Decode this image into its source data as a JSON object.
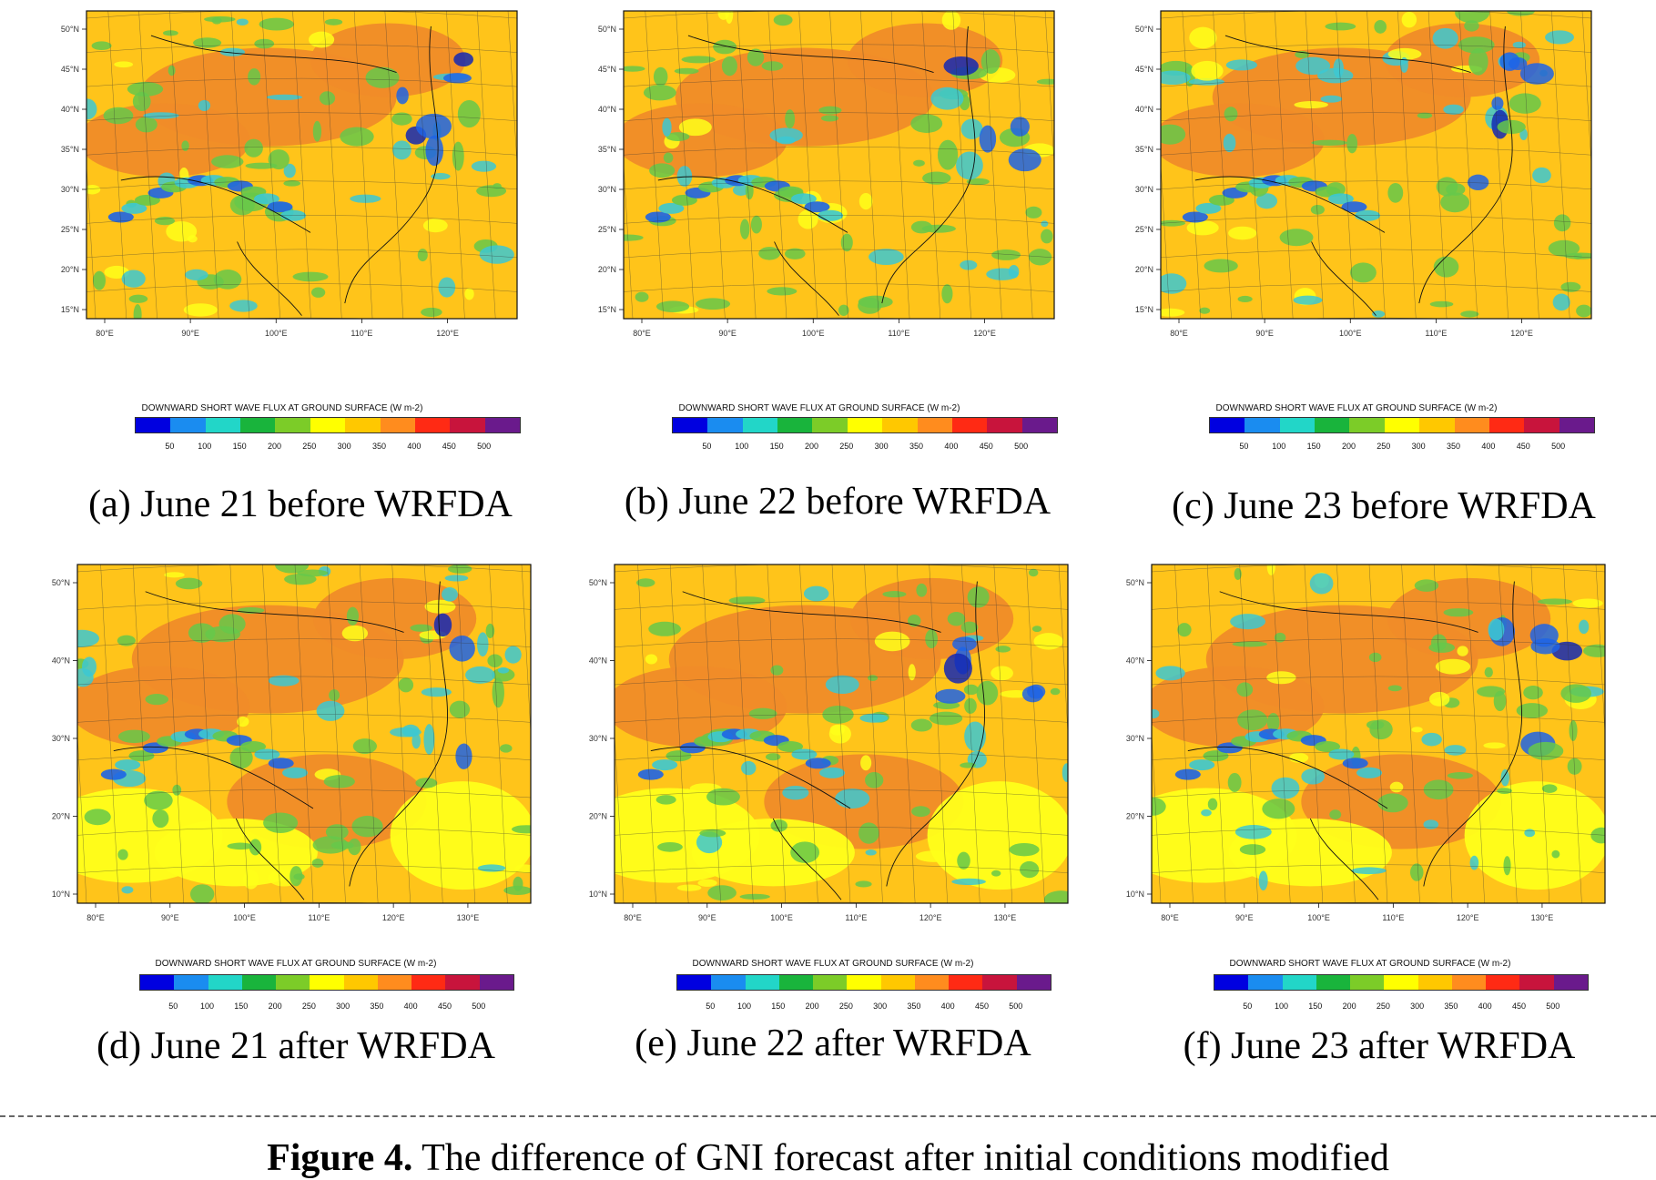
{
  "colorbar": {
    "title": "DOWNWARD SHORT WAVE FLUX AT GROUND SURFACE  (W m-2)",
    "colors": [
      "#0000e0",
      "#1a8cf0",
      "#22d6c8",
      "#19b43c",
      "#7ccc28",
      "#ffff00",
      "#ffc800",
      "#ff8c1e",
      "#ff2a14",
      "#c8143c",
      "#6a1a8c"
    ],
    "ticks": [
      "50",
      "100",
      "150",
      "200",
      "250",
      "300",
      "350",
      "400",
      "450",
      "500"
    ]
  },
  "palette": {
    "orange": "#f08c28",
    "amber": "#ffc41a",
    "yellow": "#ffff1a",
    "green": "#66c84a",
    "cyan": "#3cc8d2",
    "blue": "#1e64e6",
    "navy": "#1428b4"
  },
  "panels": [
    {
      "caption": "(a) June 21 before WRFDA",
      "lon_labels": [
        "80°E",
        "90°E",
        "100°E",
        "110°E",
        "120°E"
      ],
      "lat_labels": [
        "50°N",
        "45°N",
        "40°N",
        "35°N",
        "30°N",
        "25°N",
        "20°N",
        "15°N"
      ]
    },
    {
      "caption": "(b) June 22 before WRFDA",
      "lon_labels": [
        "80°E",
        "90°E",
        "100°E",
        "110°E",
        "120°E"
      ],
      "lat_labels": [
        "50°N",
        "45°N",
        "40°N",
        "35°N",
        "30°N",
        "25°N",
        "20°N",
        "15°N"
      ]
    },
    {
      "caption": "(c) June 23 before WRFDA",
      "lon_labels": [
        "80°E",
        "90°E",
        "100°E",
        "110°E",
        "120°E"
      ],
      "lat_labels": [
        "50°N",
        "45°N",
        "40°N",
        "35°N",
        "30°N",
        "25°N",
        "20°N",
        "15°N"
      ]
    },
    {
      "caption": "(d) June 21 after WRFDA",
      "lon_labels": [
        "80°E",
        "90°E",
        "100°E",
        "110°E",
        "120°E",
        "130°E"
      ],
      "lat_labels": [
        "50°N",
        "40°N",
        "30°N",
        "20°N",
        "10°N"
      ]
    },
    {
      "caption": "(e) June 22 after WRFDA",
      "lon_labels": [
        "80°E",
        "90°E",
        "100°E",
        "110°E",
        "120°E",
        "130°E"
      ],
      "lat_labels": [
        "50°N",
        "40°N",
        "30°N",
        "20°N",
        "10°N"
      ]
    },
    {
      "caption": "(f) June 23 after WRFDA",
      "lon_labels": [
        "80°E",
        "90°E",
        "100°E",
        "110°E",
        "120°E",
        "130°E"
      ],
      "lat_labels": [
        "50°N",
        "40°N",
        "30°N",
        "20°N",
        "10°N"
      ]
    }
  ],
  "figure": {
    "label": "Figure 4.",
    "text": " The difference of GNI forecast after initial conditions modified"
  }
}
